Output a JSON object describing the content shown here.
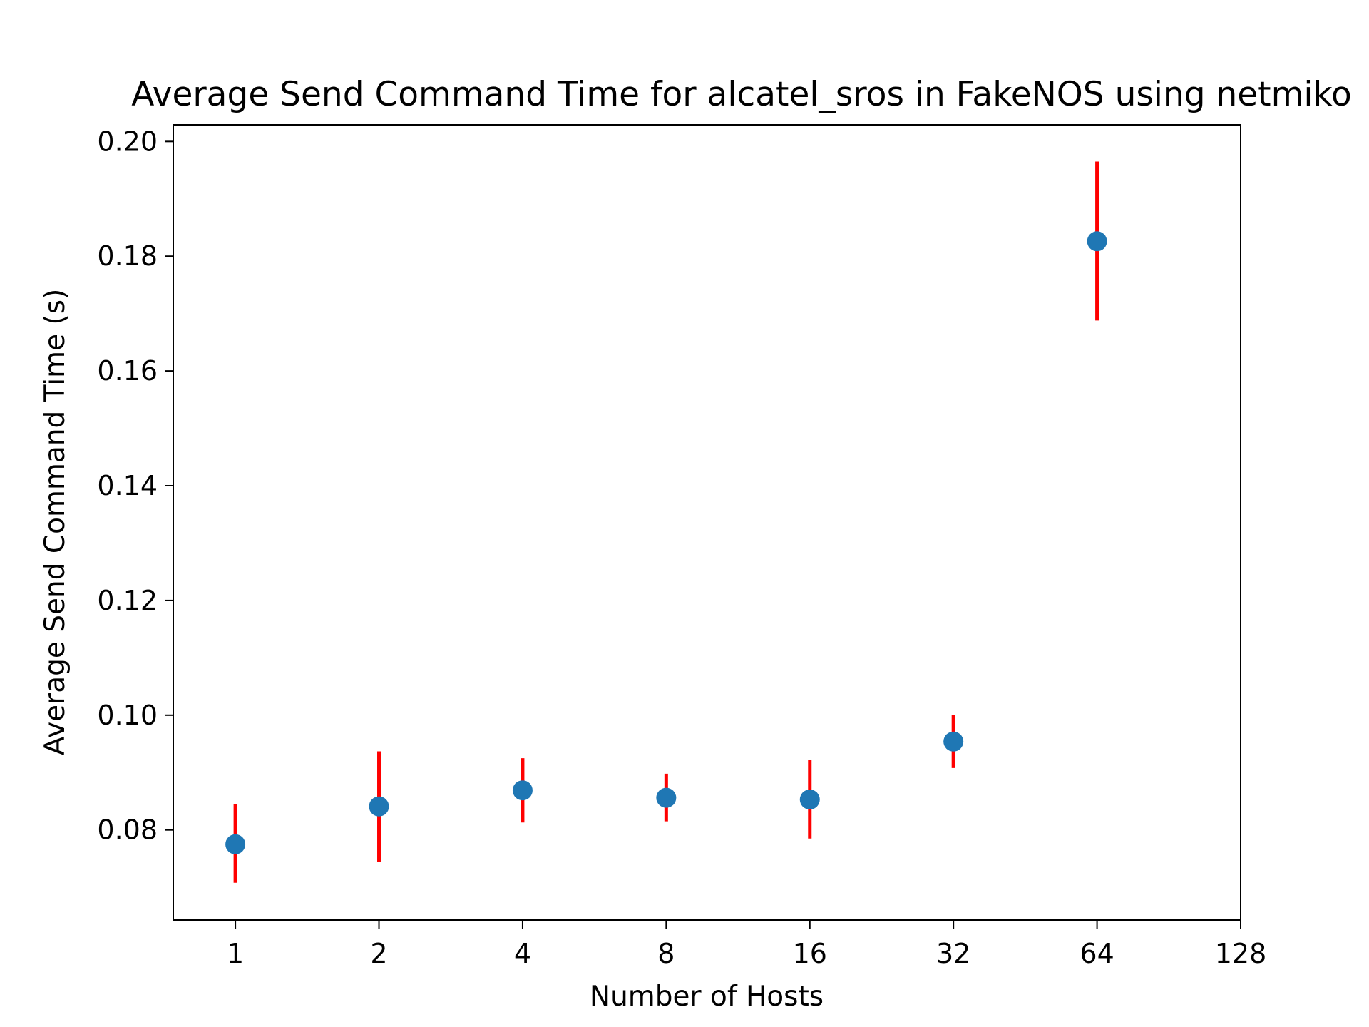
{
  "chart_data": {
    "type": "scatter",
    "title": "Average Send Command Time for alcatel_sros in FakeNOS using netmiko",
    "xlabel": "Number of Hosts",
    "ylabel": "Average Send Command Time (s)",
    "x_scale": "log2",
    "xlim": [
      0.741,
      128
    ],
    "ylim": [
      0.0643,
      0.2029
    ],
    "x_ticks": [
      1,
      2,
      4,
      8,
      16,
      32,
      64,
      128
    ],
    "x_tick_labels": [
      "1",
      "2",
      "4",
      "8",
      "16",
      "32",
      "64",
      "128"
    ],
    "y_ticks": [
      0.08,
      0.1,
      0.12,
      0.14,
      0.16,
      0.18,
      0.2
    ],
    "y_tick_labels": [
      "0.08",
      "0.10",
      "0.12",
      "0.14",
      "0.16",
      "0.18",
      "0.20"
    ],
    "grid": false,
    "points": [
      {
        "x": 1,
        "y": 0.0775,
        "err_low": 0.0708,
        "err_high": 0.0845
      },
      {
        "x": 2,
        "y": 0.0841,
        "err_low": 0.0745,
        "err_high": 0.0937
      },
      {
        "x": 4,
        "y": 0.0869,
        "err_low": 0.0813,
        "err_high": 0.0925
      },
      {
        "x": 8,
        "y": 0.0856,
        "err_low": 0.0815,
        "err_high": 0.0898
      },
      {
        "x": 16,
        "y": 0.0853,
        "err_low": 0.0785,
        "err_high": 0.0922
      },
      {
        "x": 32,
        "y": 0.0954,
        "err_low": 0.0908,
        "err_high": 0.1
      },
      {
        "x": 64,
        "y": 0.1826,
        "err_low": 0.1688,
        "err_high": 0.1965
      }
    ],
    "marker_color": "#1f77b4",
    "errorbar_color": "#ff0000"
  }
}
